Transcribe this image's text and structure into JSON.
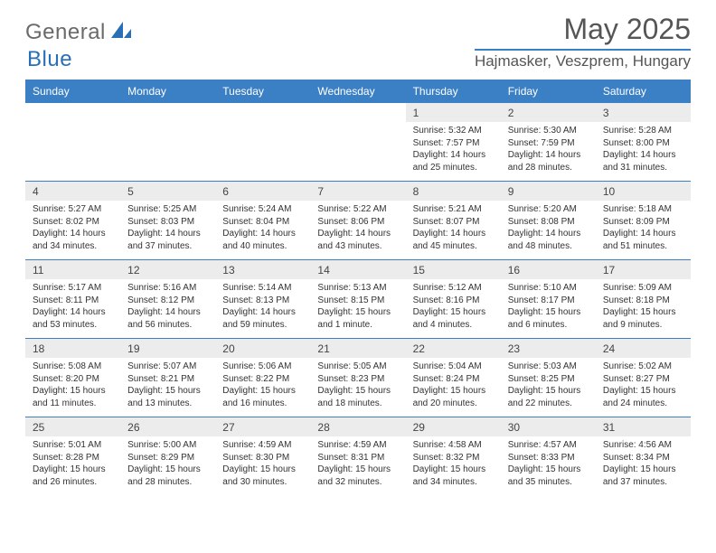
{
  "brand": {
    "name_part1": "General",
    "name_part2": "Blue"
  },
  "colors": {
    "brand_gray": "#6a6a6a",
    "brand_blue": "#2a6fb5",
    "header_bg": "#3b7fc4",
    "row_alt": "#ececec",
    "text": "#333333",
    "title_text": "#555555"
  },
  "typography": {
    "month_title_fontsize": 32,
    "location_fontsize": 17,
    "dayhead_fontsize": 12,
    "daynum_fontsize": 12,
    "body_fontsize": 10
  },
  "title": "May 2025",
  "location": "Hajmasker, Veszprem, Hungary",
  "day_headers": [
    "Sunday",
    "Monday",
    "Tuesday",
    "Wednesday",
    "Thursday",
    "Friday",
    "Saturday"
  ],
  "weeks": [
    [
      null,
      null,
      null,
      null,
      {
        "n": "1",
        "sunrise": "5:32 AM",
        "sunset": "7:57 PM",
        "daylight": "14 hours and 25 minutes."
      },
      {
        "n": "2",
        "sunrise": "5:30 AM",
        "sunset": "7:59 PM",
        "daylight": "14 hours and 28 minutes."
      },
      {
        "n": "3",
        "sunrise": "5:28 AM",
        "sunset": "8:00 PM",
        "daylight": "14 hours and 31 minutes."
      }
    ],
    [
      {
        "n": "4",
        "sunrise": "5:27 AM",
        "sunset": "8:02 PM",
        "daylight": "14 hours and 34 minutes."
      },
      {
        "n": "5",
        "sunrise": "5:25 AM",
        "sunset": "8:03 PM",
        "daylight": "14 hours and 37 minutes."
      },
      {
        "n": "6",
        "sunrise": "5:24 AM",
        "sunset": "8:04 PM",
        "daylight": "14 hours and 40 minutes."
      },
      {
        "n": "7",
        "sunrise": "5:22 AM",
        "sunset": "8:06 PM",
        "daylight": "14 hours and 43 minutes."
      },
      {
        "n": "8",
        "sunrise": "5:21 AM",
        "sunset": "8:07 PM",
        "daylight": "14 hours and 45 minutes."
      },
      {
        "n": "9",
        "sunrise": "5:20 AM",
        "sunset": "8:08 PM",
        "daylight": "14 hours and 48 minutes."
      },
      {
        "n": "10",
        "sunrise": "5:18 AM",
        "sunset": "8:09 PM",
        "daylight": "14 hours and 51 minutes."
      }
    ],
    [
      {
        "n": "11",
        "sunrise": "5:17 AM",
        "sunset": "8:11 PM",
        "daylight": "14 hours and 53 minutes."
      },
      {
        "n": "12",
        "sunrise": "5:16 AM",
        "sunset": "8:12 PM",
        "daylight": "14 hours and 56 minutes."
      },
      {
        "n": "13",
        "sunrise": "5:14 AM",
        "sunset": "8:13 PM",
        "daylight": "14 hours and 59 minutes."
      },
      {
        "n": "14",
        "sunrise": "5:13 AM",
        "sunset": "8:15 PM",
        "daylight": "15 hours and 1 minute."
      },
      {
        "n": "15",
        "sunrise": "5:12 AM",
        "sunset": "8:16 PM",
        "daylight": "15 hours and 4 minutes."
      },
      {
        "n": "16",
        "sunrise": "5:10 AM",
        "sunset": "8:17 PM",
        "daylight": "15 hours and 6 minutes."
      },
      {
        "n": "17",
        "sunrise": "5:09 AM",
        "sunset": "8:18 PM",
        "daylight": "15 hours and 9 minutes."
      }
    ],
    [
      {
        "n": "18",
        "sunrise": "5:08 AM",
        "sunset": "8:20 PM",
        "daylight": "15 hours and 11 minutes."
      },
      {
        "n": "19",
        "sunrise": "5:07 AM",
        "sunset": "8:21 PM",
        "daylight": "15 hours and 13 minutes."
      },
      {
        "n": "20",
        "sunrise": "5:06 AM",
        "sunset": "8:22 PM",
        "daylight": "15 hours and 16 minutes."
      },
      {
        "n": "21",
        "sunrise": "5:05 AM",
        "sunset": "8:23 PM",
        "daylight": "15 hours and 18 minutes."
      },
      {
        "n": "22",
        "sunrise": "5:04 AM",
        "sunset": "8:24 PM",
        "daylight": "15 hours and 20 minutes."
      },
      {
        "n": "23",
        "sunrise": "5:03 AM",
        "sunset": "8:25 PM",
        "daylight": "15 hours and 22 minutes."
      },
      {
        "n": "24",
        "sunrise": "5:02 AM",
        "sunset": "8:27 PM",
        "daylight": "15 hours and 24 minutes."
      }
    ],
    [
      {
        "n": "25",
        "sunrise": "5:01 AM",
        "sunset": "8:28 PM",
        "daylight": "15 hours and 26 minutes."
      },
      {
        "n": "26",
        "sunrise": "5:00 AM",
        "sunset": "8:29 PM",
        "daylight": "15 hours and 28 minutes."
      },
      {
        "n": "27",
        "sunrise": "4:59 AM",
        "sunset": "8:30 PM",
        "daylight": "15 hours and 30 minutes."
      },
      {
        "n": "28",
        "sunrise": "4:59 AM",
        "sunset": "8:31 PM",
        "daylight": "15 hours and 32 minutes."
      },
      {
        "n": "29",
        "sunrise": "4:58 AM",
        "sunset": "8:32 PM",
        "daylight": "15 hours and 34 minutes."
      },
      {
        "n": "30",
        "sunrise": "4:57 AM",
        "sunset": "8:33 PM",
        "daylight": "15 hours and 35 minutes."
      },
      {
        "n": "31",
        "sunrise": "4:56 AM",
        "sunset": "8:34 PM",
        "daylight": "15 hours and 37 minutes."
      }
    ]
  ],
  "labels": {
    "sunrise": "Sunrise: ",
    "sunset": "Sunset: ",
    "daylight": "Daylight: "
  }
}
